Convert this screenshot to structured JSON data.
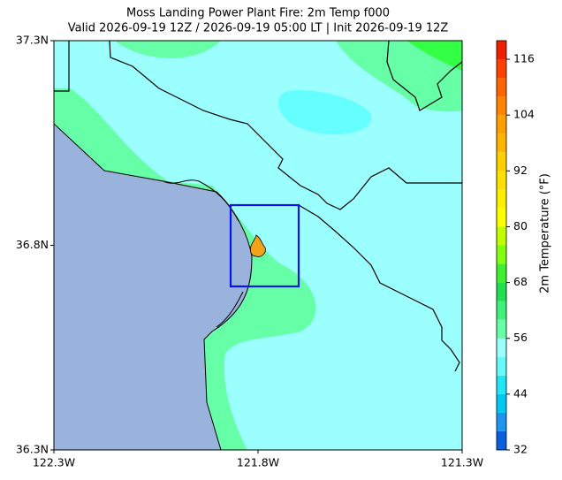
{
  "chart_data": {
    "type": "map",
    "title": "Moss Landing Power Plant Fire: 2m Temp f000",
    "subtitle": "Valid 2026-09-19 12Z / 2026-09-19 05:00 LT | Init 2026-09-19 12Z",
    "xlim": [
      -122.3,
      -121.3
    ],
    "xticks": [
      {
        "value": -122.3,
        "label": "122.3W"
      },
      {
        "value": -121.8,
        "label": "121.8W"
      },
      {
        "value": -121.3,
        "label": "121.3W"
      }
    ],
    "ylim": [
      36.3,
      37.3
    ],
    "yticks": [
      {
        "value": 36.3,
        "label": "36.3N"
      },
      {
        "value": 36.8,
        "label": "36.8N"
      },
      {
        "value": 37.3,
        "label": "37.3N"
      }
    ],
    "colorbar": {
      "label": "2m Temperature (°F)",
      "lim": [
        32,
        120
      ],
      "ticks": [
        32,
        44,
        56,
        68,
        80,
        92,
        104,
        116
      ],
      "levels": [
        32,
        36,
        40,
        44,
        48,
        52,
        56,
        60,
        64,
        68,
        72,
        76,
        80,
        84,
        88,
        92,
        96,
        100,
        104,
        108,
        112,
        116,
        120
      ],
      "colors": [
        "#0a5fdc",
        "#1e96f0",
        "#00c8f0",
        "#20e6f5",
        "#66fafa",
        "#9bfffd",
        "#66ffa8",
        "#40f07a",
        "#20e050",
        "#40f030",
        "#80ff10",
        "#c0ff00",
        "#ffff00",
        "#fff000",
        "#ffe000",
        "#ffd000",
        "#ffb400",
        "#ffa000",
        "#ff8200",
        "#ff6400",
        "#ff4000",
        "#f01e00"
      ]
    }
  }
}
